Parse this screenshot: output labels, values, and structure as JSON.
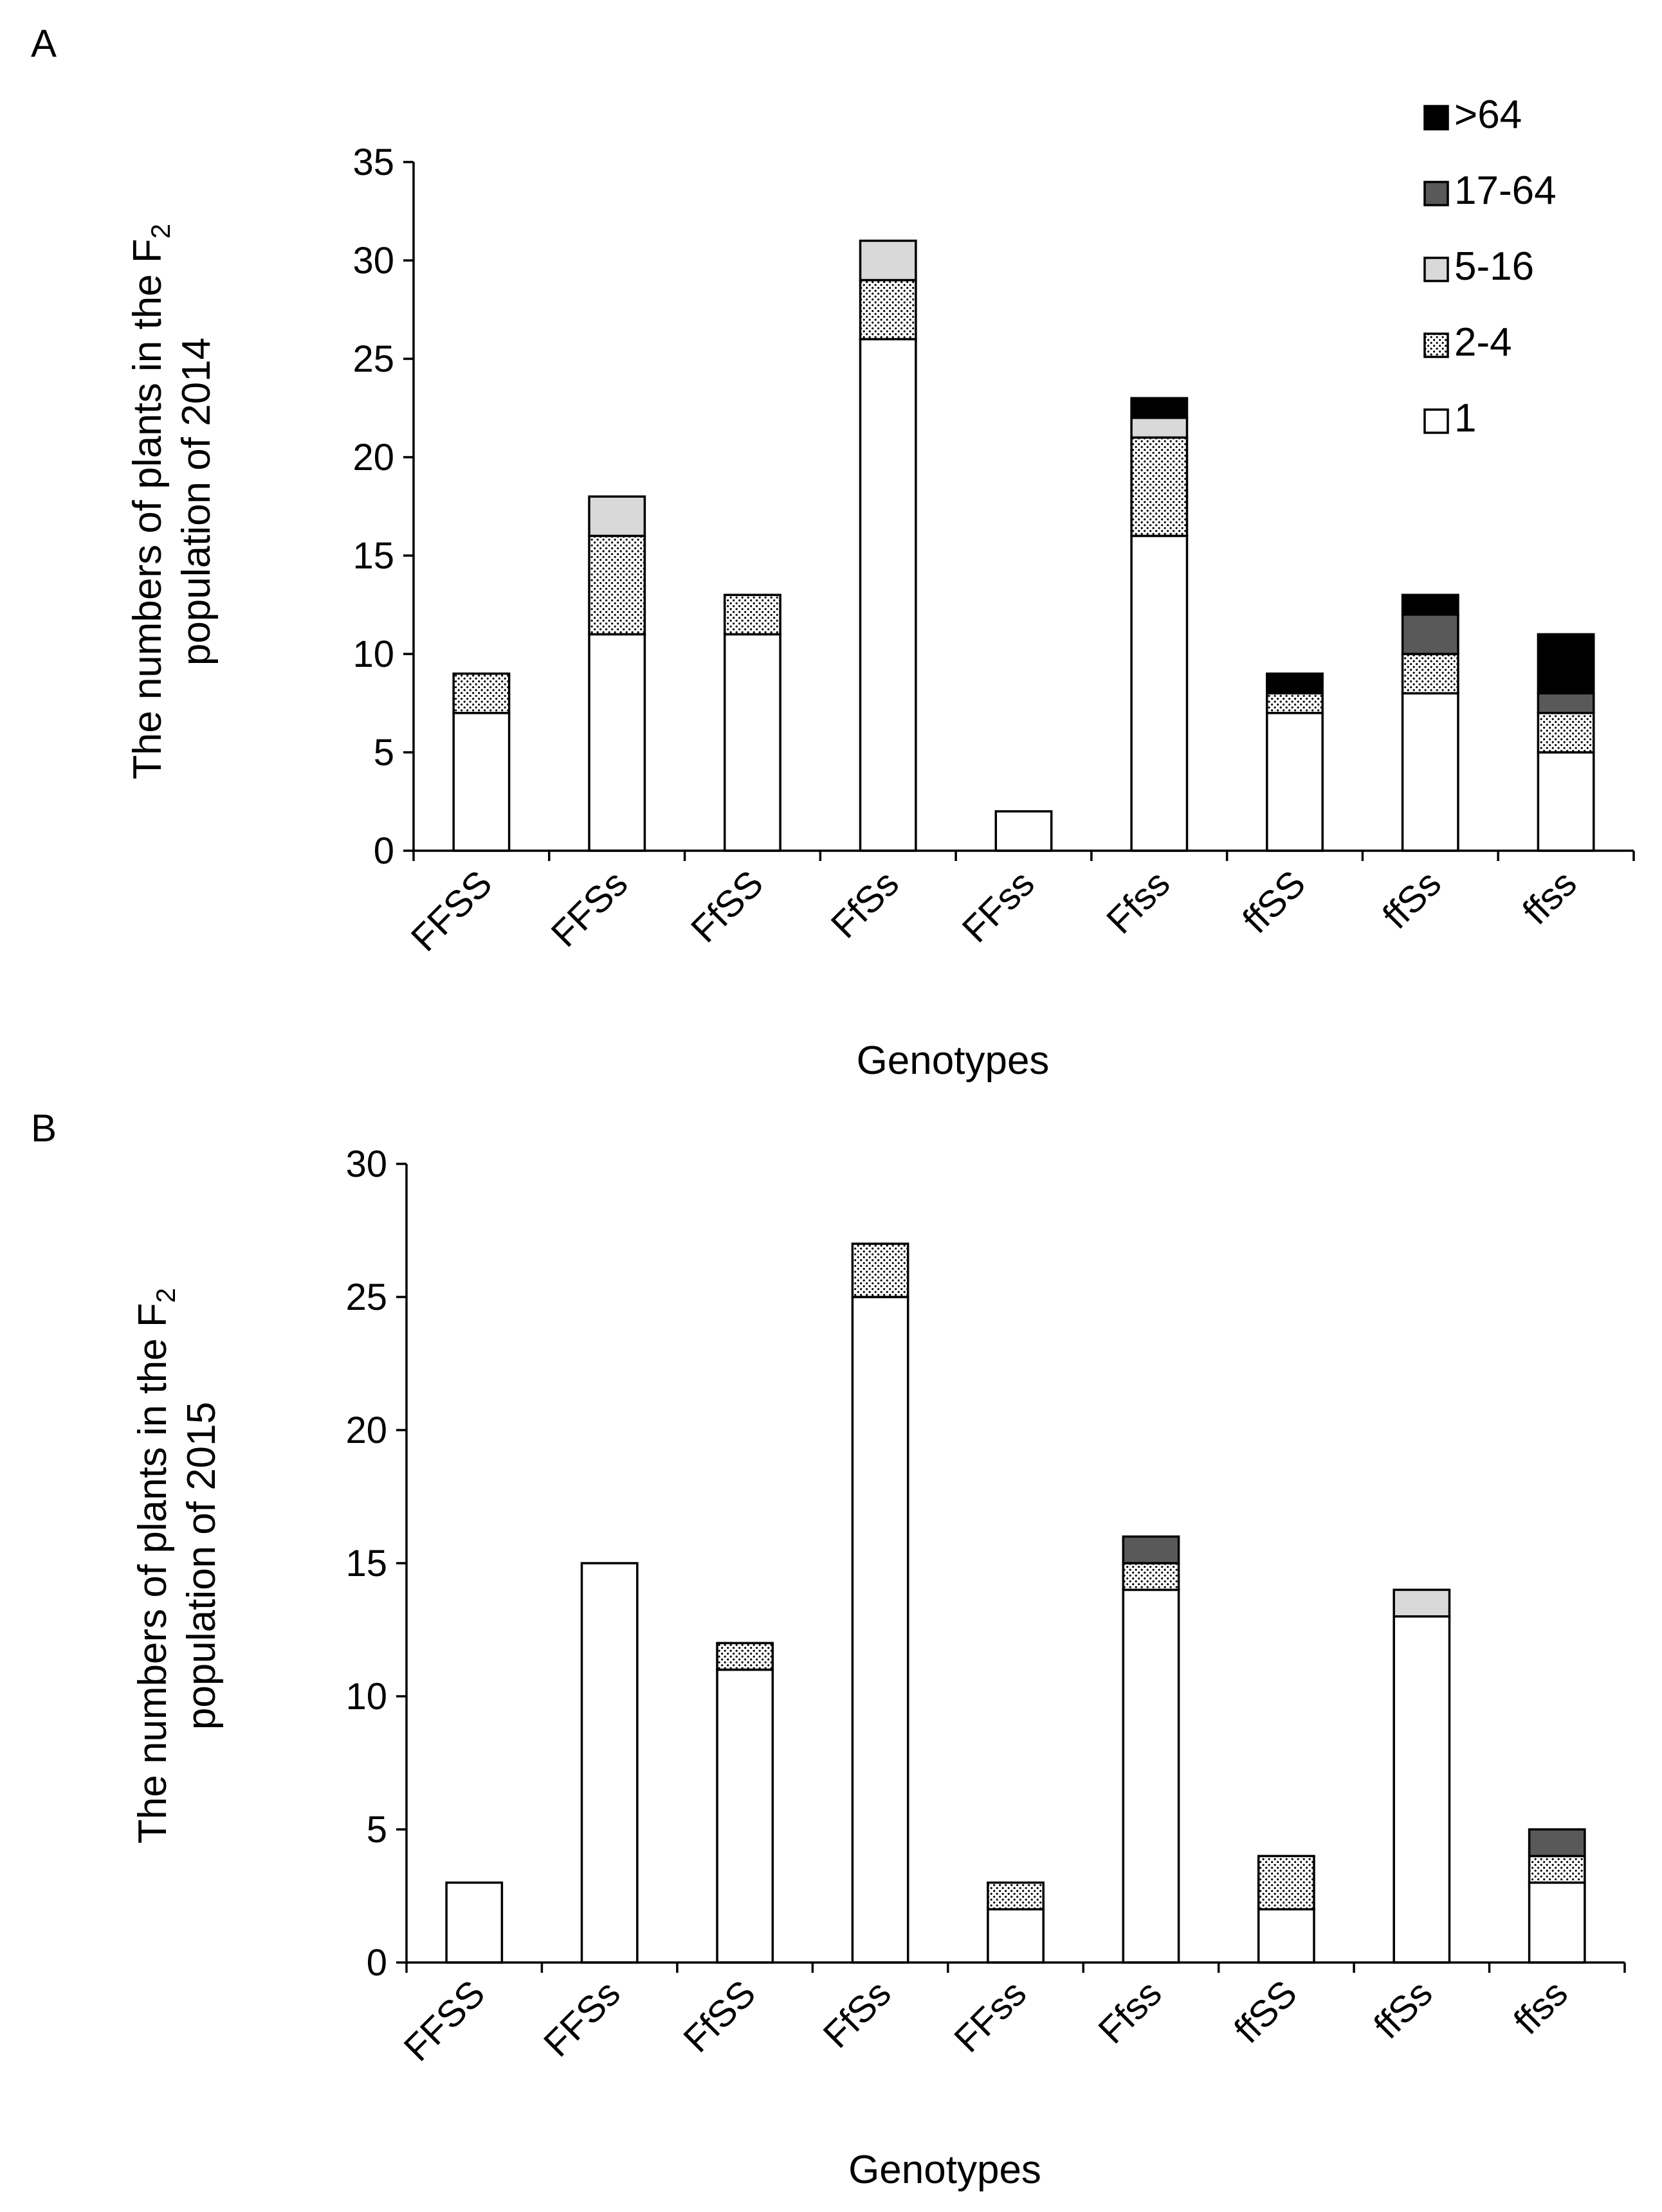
{
  "legend": {
    "series_order_top_to_bottom": [
      ">64",
      "17-64",
      "5-16",
      "2-4",
      "1"
    ]
  },
  "series_styles": {
    "1": {
      "fill": "#ffffff",
      "pattern": "none"
    },
    "2-4": {
      "fill": "#ffffff",
      "pattern": "dots"
    },
    "5-16": {
      "fill": "#d9d9d9",
      "pattern": "none"
    },
    "17-64": {
      "fill": "#595959",
      "pattern": "none"
    },
    ">64": {
      "fill": "#000000",
      "pattern": "none"
    }
  },
  "chart_data": [
    {
      "panel_label": "A",
      "type": "bar",
      "stacked": true,
      "categories": [
        "FFSS",
        "FFSs",
        "FfSS",
        "FfSs",
        "FFss",
        "Ffss",
        "ffSS",
        "ffSs",
        "ffss"
      ],
      "series": [
        {
          "name": "1",
          "values": [
            7,
            11,
            11,
            26,
            2,
            16,
            7,
            8,
            5
          ]
        },
        {
          "name": "2-4",
          "values": [
            2,
            5,
            2,
            3,
            0,
            5,
            1,
            2,
            2
          ]
        },
        {
          "name": "5-16",
          "values": [
            0,
            2,
            0,
            2,
            0,
            1,
            0,
            0,
            0
          ]
        },
        {
          "name": "17-64",
          "values": [
            0,
            0,
            0,
            0,
            0,
            0,
            0,
            2,
            1
          ]
        },
        {
          "name": ">64",
          "values": [
            0,
            0,
            0,
            0,
            0,
            1,
            1,
            1,
            3
          ]
        }
      ],
      "title": "",
      "xlabel": "Genotypes",
      "ylabel_main": "The numbers of  plants in the F",
      "ylabel_sub": "2",
      "ylabel_line2": "population of 2014",
      "ylim": [
        0,
        35
      ],
      "yticks": [
        0,
        5,
        10,
        15,
        20,
        25,
        30,
        35
      ],
      "grid": false,
      "legend_position": "top-right"
    },
    {
      "panel_label": "B",
      "type": "bar",
      "stacked": true,
      "categories": [
        "FFSS",
        "FFSs",
        "FfSS",
        "FfSs",
        "FFss",
        "Ffss",
        "ffSS",
        "ffSs",
        "ffss"
      ],
      "series": [
        {
          "name": "1",
          "values": [
            3,
            15,
            11,
            25,
            2,
            14,
            2,
            13,
            3
          ]
        },
        {
          "name": "2-4",
          "values": [
            0,
            0,
            1,
            2,
            1,
            1,
            2,
            0,
            1
          ]
        },
        {
          "name": "5-16",
          "values": [
            0,
            0,
            0,
            0,
            0,
            0,
            0,
            1,
            0
          ]
        },
        {
          "name": "17-64",
          "values": [
            0,
            0,
            0,
            0,
            0,
            1,
            0,
            0,
            1
          ]
        },
        {
          "name": ">64",
          "values": [
            0,
            0,
            0,
            0,
            0,
            0,
            0,
            0,
            0
          ]
        }
      ],
      "title": "",
      "xlabel": "Genotypes",
      "ylabel_main": "The numbers of  plants in the F",
      "ylabel_sub": "2",
      "ylabel_line2": "population of 2015",
      "ylim": [
        0,
        30
      ],
      "yticks": [
        0,
        5,
        10,
        15,
        20,
        25,
        30
      ],
      "grid": false,
      "legend_position": "none"
    }
  ]
}
